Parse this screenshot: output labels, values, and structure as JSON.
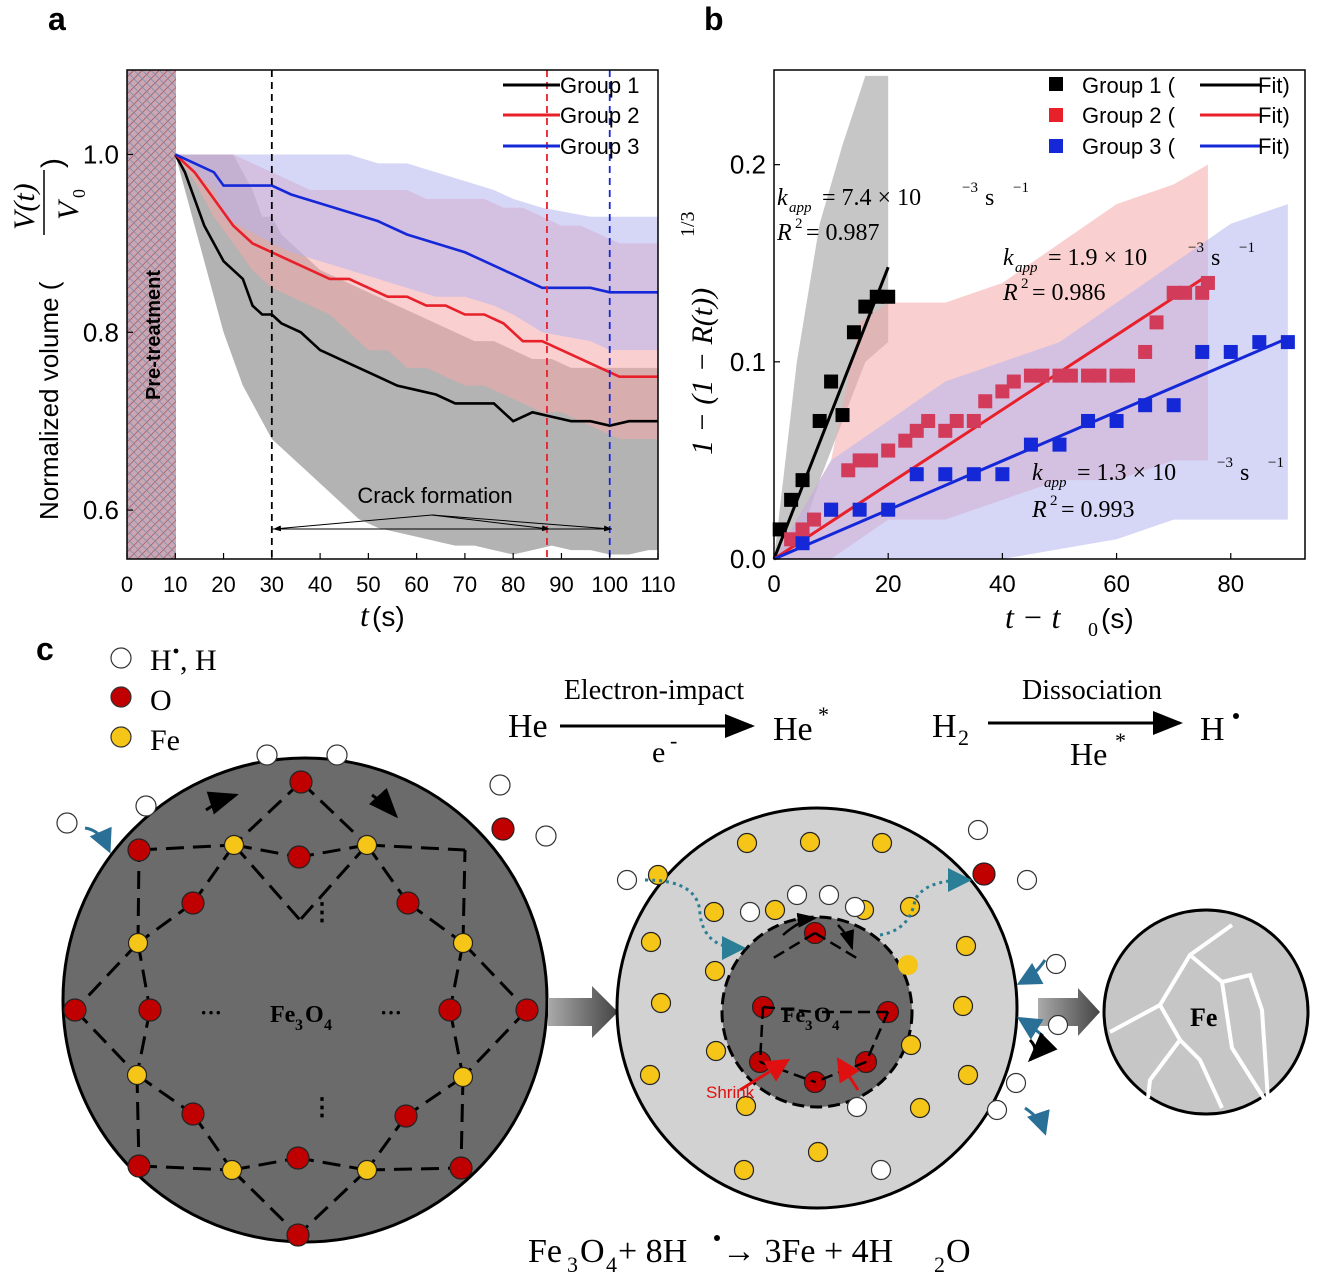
{
  "panel_a": {
    "label": "a",
    "ylabel_main": "Normalized volume (",
    "ylabel_frac_num": "V(t)",
    "ylabel_frac_den": "V",
    "ylabel_frac_den_sub": "0",
    "ylabel_close": ")",
    "xlabel_t": "t",
    "xlabel_unit": "(s)",
    "pretreatment": "Pre-treatment",
    "crack_label": "Crack formation"
  },
  "panel_b": {
    "label": "b",
    "ylabel": "1 − (1 − R(t))",
    "ylabel_exp": "1/3",
    "xlabel": "t − t",
    "xlabel_sub": "0",
    "xlabel_unit": "(s)",
    "ann": [
      {
        "k": "k",
        "sub": "app",
        "eq": " = 7.4 × 10",
        "exp": "−3",
        "unit": " s",
        "uexp": "−1",
        "r2": "R",
        "r2exp": "2",
        "r2val": " = 0.987"
      },
      {
        "k": "k",
        "sub": "app",
        "eq": " = 1.9 × 10",
        "exp": "−3",
        "unit": " s",
        "uexp": "−1",
        "r2": "R",
        "r2exp": "2",
        "r2val": " = 0.986"
      },
      {
        "k": "k",
        "sub": "app",
        "eq": " = 1.3 × 10",
        "exp": "−3",
        "unit": " s",
        "uexp": "−1",
        "r2": "R",
        "r2exp": "2",
        "r2val": " = 0.993"
      }
    ]
  },
  "panel_c": {
    "label": "c",
    "legend": [
      {
        "label": "H",
        "label2": ", H",
        "color": "#ffffff"
      },
      {
        "label": "O",
        "label2": "",
        "color": "#c00000"
      },
      {
        "label": "Fe",
        "label2": "",
        "color": "#f5c518"
      }
    ],
    "eq1_left": "He",
    "eq1_top": "Electron-impact",
    "eq1_bottom": "e",
    "eq1_bottom_sup": "-",
    "eq1_right": "He",
    "eq1_right_sup": "*",
    "eq2_left": "H",
    "eq2_left_sub": "2",
    "eq2_top": "Dissociation",
    "eq2_bottom": "He",
    "eq2_bottom_sup": "*",
    "eq2_right": "H",
    "core1_label": "Fe",
    "core1_sub1": "3",
    "core1_mid": "O",
    "core1_sub2": "4",
    "core2_label": "Fe",
    "core2_sub1": "3",
    "core2_mid": "O",
    "core2_sub2": "4",
    "shrink": "Shrink",
    "final_label": "Fe",
    "dots": "···",
    "vdots": "⋮",
    "reaction": {
      "p1": "Fe",
      "s1": "3",
      "p2": "O",
      "s2": "4",
      "p3": " + 8H",
      "p4": " → 3Fe + 4H",
      "s3": "2",
      "p5": "O"
    }
  },
  "colors": {
    "group1": "#000000",
    "group2": "#e8202a",
    "group3": "#1428d8",
    "band1": "#a0a0a0",
    "band2": "#f6a8a8",
    "band3": "#b4b4f0",
    "o": "#c00000",
    "fe": "#f5c518",
    "dark": "#6b6b6b",
    "light": "#d2d2d2"
  },
  "chart_data": [
    {
      "type": "line",
      "title": "",
      "xlabel": "t(s)",
      "ylabel": "Normalized volume (V(t)/V0)",
      "xlim": [
        0,
        110
      ],
      "ylim": [
        0.545,
        1.095
      ],
      "xticks": [
        0,
        10,
        20,
        30,
        40,
        50,
        60,
        70,
        80,
        90,
        100,
        110
      ],
      "yticks": [
        0.6,
        0.8,
        1.0
      ],
      "ytick_labels": [
        "0.6",
        "0.8",
        "1.0"
      ],
      "legend": [
        "Group 1",
        "Group 2",
        "Group 3"
      ],
      "legend_position": "top-right",
      "shaded_region": {
        "x": [
          0,
          10
        ],
        "label": "Pre-treatment"
      },
      "vlines": [
        {
          "x": 30,
          "color": "black"
        },
        {
          "x": 87,
          "color": "red"
        },
        {
          "x": 100,
          "color": "blue"
        }
      ],
      "series": [
        {
          "name": "Group 1",
          "x": [
            10,
            12,
            14,
            16,
            18,
            20,
            22,
            24,
            26,
            28,
            30,
            32,
            34,
            36,
            38,
            40,
            44,
            48,
            52,
            56,
            60,
            64,
            68,
            72,
            76,
            80,
            84,
            88,
            92,
            96,
            100,
            104,
            108,
            110
          ],
          "y": [
            1.0,
            0.98,
            0.95,
            0.92,
            0.9,
            0.88,
            0.87,
            0.86,
            0.83,
            0.82,
            0.82,
            0.81,
            0.805,
            0.8,
            0.79,
            0.78,
            0.77,
            0.76,
            0.75,
            0.74,
            0.735,
            0.73,
            0.72,
            0.72,
            0.72,
            0.7,
            0.71,
            0.705,
            0.7,
            0.7,
            0.695,
            0.7,
            0.7,
            0.7
          ],
          "lower": [
            1.0,
            0.96,
            0.92,
            0.88,
            0.84,
            0.8,
            0.77,
            0.74,
            0.72,
            0.7,
            0.68,
            0.67,
            0.66,
            0.65,
            0.64,
            0.63,
            0.61,
            0.59,
            0.58,
            0.575,
            0.57,
            0.565,
            0.56,
            0.56,
            0.555,
            0.55,
            0.555,
            0.56,
            0.555,
            0.555,
            0.55,
            0.55,
            0.555,
            0.555
          ],
          "upper": [
            1.0,
            1.0,
            1.0,
            1.0,
            1.0,
            1.0,
            1.0,
            0.98,
            0.96,
            0.93,
            0.93,
            0.91,
            0.9,
            0.89,
            0.88,
            0.87,
            0.86,
            0.85,
            0.84,
            0.83,
            0.82,
            0.81,
            0.8,
            0.79,
            0.79,
            0.78,
            0.77,
            0.77,
            0.76,
            0.76,
            0.76,
            0.76,
            0.76,
            0.76
          ]
        },
        {
          "name": "Group 2",
          "x": [
            10,
            14,
            18,
            22,
            26,
            30,
            34,
            38,
            42,
            46,
            50,
            54,
            58,
            62,
            66,
            70,
            74,
            78,
            82,
            86,
            90,
            94,
            98,
            102,
            106,
            110
          ],
          "y": [
            1.0,
            0.98,
            0.95,
            0.92,
            0.9,
            0.89,
            0.88,
            0.87,
            0.86,
            0.86,
            0.85,
            0.84,
            0.84,
            0.83,
            0.83,
            0.82,
            0.82,
            0.81,
            0.79,
            0.79,
            0.78,
            0.77,
            0.76,
            0.75,
            0.75,
            0.75
          ],
          "lower": [
            1.0,
            0.97,
            0.93,
            0.9,
            0.87,
            0.85,
            0.84,
            0.83,
            0.82,
            0.8,
            0.78,
            0.78,
            0.76,
            0.76,
            0.75,
            0.74,
            0.74,
            0.73,
            0.72,
            0.71,
            0.71,
            0.7,
            0.69,
            0.68,
            0.68,
            0.68
          ],
          "upper": [
            1.0,
            1.0,
            1.0,
            1.0,
            0.99,
            0.98,
            0.97,
            0.96,
            0.96,
            0.96,
            0.96,
            0.96,
            0.96,
            0.95,
            0.95,
            0.95,
            0.95,
            0.94,
            0.94,
            0.93,
            0.92,
            0.92,
            0.91,
            0.9,
            0.9,
            0.9
          ]
        },
        {
          "name": "Group 3",
          "x": [
            10,
            14,
            18,
            20,
            30,
            34,
            40,
            46,
            52,
            58,
            64,
            70,
            76,
            80,
            86,
            96,
            100,
            110
          ],
          "y": [
            1.0,
            0.99,
            0.98,
            0.965,
            0.965,
            0.955,
            0.945,
            0.935,
            0.925,
            0.91,
            0.9,
            0.89,
            0.875,
            0.865,
            0.85,
            0.85,
            0.845,
            0.845
          ],
          "lower": [
            1.0,
            0.98,
            0.96,
            0.93,
            0.9,
            0.89,
            0.88,
            0.87,
            0.86,
            0.85,
            0.84,
            0.84,
            0.83,
            0.82,
            0.8,
            0.79,
            0.78,
            0.78
          ],
          "upper": [
            1.0,
            1.0,
            1.0,
            1.0,
            1.0,
            1.0,
            1.0,
            1.0,
            0.99,
            0.99,
            0.98,
            0.97,
            0.96,
            0.95,
            0.94,
            0.93,
            0.93,
            0.93
          ]
        }
      ]
    },
    {
      "type": "scatter",
      "title": "",
      "xlabel": "t − t0(s)",
      "ylabel": "1 − (1 − R(t))^(1/3)",
      "xlim": [
        0,
        93
      ],
      "ylim": [
        0,
        0.248
      ],
      "xticks": [
        0,
        20,
        40,
        60,
        80
      ],
      "yticks": [
        0.0,
        0.1,
        0.2
      ],
      "ytick_labels": [
        "0.0",
        "0.1",
        "0.2"
      ],
      "legend": [
        "Group 1 (",
        "Fit)",
        "Group 2 (",
        "Fit)",
        "Group 3 (",
        "Fit)"
      ],
      "legend_position": "top-right",
      "series": [
        {
          "name": "Group 1",
          "k_app": "7.4 × 10^-3 s^-1",
          "R2": 0.987,
          "x": [
            1,
            3,
            5,
            8,
            10,
            12,
            14,
            16,
            18,
            20
          ],
          "y": [
            0.015,
            0.03,
            0.04,
            0.07,
            0.09,
            0.073,
            0.115,
            0.128,
            0.133,
            0.133
          ],
          "fit_x": [
            0,
            20
          ],
          "fit_y": [
            0.0,
            0.148
          ],
          "band_x": [
            0,
            4,
            8,
            12,
            16,
            20
          ],
          "band_lower": [
            0,
            0.005,
            0.04,
            0.07,
            0.1,
            0.11
          ],
          "band_upper": [
            0,
            0.1,
            0.17,
            0.21,
            0.245,
            0.245
          ]
        },
        {
          "name": "Group 2",
          "k_app": "1.9 × 10^-3 s^-1",
          "R2": 0.986,
          "x": [
            3,
            5,
            7,
            10,
            13,
            15,
            17,
            20,
            23,
            25,
            27,
            30,
            32,
            35,
            37,
            40,
            42,
            45,
            47,
            50,
            52,
            55,
            57,
            60,
            62,
            65,
            67,
            70,
            72,
            75,
            76
          ],
          "y": [
            0.01,
            0.015,
            0.02,
            0.025,
            0.045,
            0.05,
            0.05,
            0.055,
            0.06,
            0.065,
            0.07,
            0.065,
            0.07,
            0.07,
            0.08,
            0.085,
            0.09,
            0.093,
            0.093,
            0.093,
            0.093,
            0.093,
            0.093,
            0.093,
            0.093,
            0.105,
            0.12,
            0.135,
            0.135,
            0.135,
            0.14
          ],
          "fit_x": [
            0,
            75
          ],
          "fit_y": [
            0.0,
            0.142
          ],
          "band_x": [
            0,
            10,
            15,
            20,
            30,
            40,
            50,
            60,
            70,
            76
          ],
          "band_lower": [
            0,
            0.0,
            0.01,
            0.02,
            0.02,
            0.03,
            0.04,
            0.04,
            0.05,
            0.05
          ],
          "band_upper": [
            0,
            0.05,
            0.12,
            0.13,
            0.13,
            0.14,
            0.16,
            0.18,
            0.19,
            0.2
          ]
        },
        {
          "name": "Group 3",
          "k_app": "1.3 × 10^-3 s^-1",
          "R2": 0.993,
          "x": [
            5,
            10,
            15,
            20,
            25,
            30,
            35,
            40,
            45,
            50,
            55,
            60,
            65,
            70,
            75,
            80,
            85,
            90
          ],
          "y": [
            0.008,
            0.025,
            0.025,
            0.025,
            0.043,
            0.043,
            0.043,
            0.043,
            0.058,
            0.058,
            0.07,
            0.07,
            0.078,
            0.078,
            0.105,
            0.105,
            0.11,
            0.11
          ],
          "fit_x": [
            0,
            90
          ],
          "fit_y": [
            0.0,
            0.112
          ],
          "band_x": [
            0,
            10,
            20,
            30,
            40,
            50,
            60,
            70,
            80,
            90
          ],
          "band_lower": [
            0,
            0.0,
            0.0,
            0.0,
            0.0,
            0.005,
            0.01,
            0.02,
            0.02,
            0.02
          ],
          "band_upper": [
            0,
            0.05,
            0.07,
            0.09,
            0.1,
            0.11,
            0.13,
            0.15,
            0.17,
            0.18
          ]
        }
      ]
    }
  ]
}
